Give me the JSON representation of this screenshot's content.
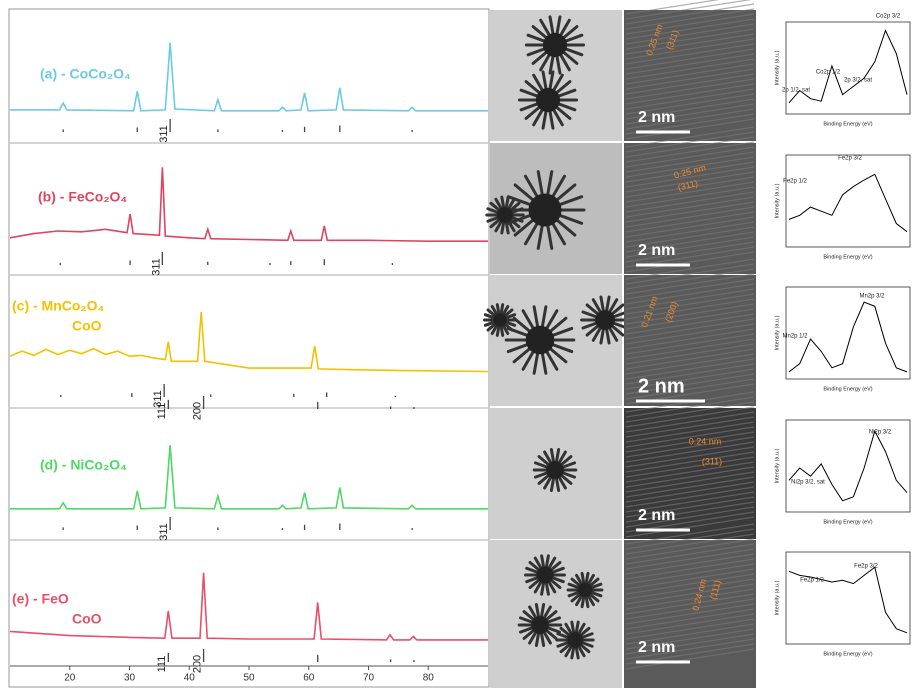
{
  "chart_data": [
    {
      "type": "line",
      "labels": [
        "(a) - CoCo₂O₄"
      ],
      "color": "#6ccbe4",
      "xlim": [
        10,
        90
      ],
      "x": [
        10,
        18.3,
        18.9,
        19.5,
        30.7,
        31.3,
        31.9,
        36.0,
        36.8,
        37.6,
        44.2,
        44.8,
        45.4,
        55.0,
        55.6,
        56.2,
        58.7,
        59.3,
        59.9,
        64.6,
        65.2,
        65.8,
        76.7,
        77.3,
        77.9,
        90
      ],
      "values": [
        6,
        6,
        14,
        6,
        5,
        28,
        5,
        6,
        85,
        7,
        5,
        18,
        5,
        5,
        9,
        5,
        6,
        26,
        5,
        6,
        32,
        6,
        5,
        9,
        5,
        5
      ],
      "refs": [
        {
          "x": [
            18.9,
            31.3,
            36.8,
            44.8,
            55.6,
            59.3,
            65.2,
            77.3
          ],
          "values": [
            20,
            35,
            100,
            20,
            15,
            40,
            50,
            15
          ],
          "hkl": [
            {
              "x": 36.8,
              "label": "311"
            }
          ]
        }
      ]
    },
    {
      "type": "line",
      "labels": [
        "(b) - FeCo₂O₄"
      ],
      "color": "#e0455f",
      "xlim": [
        10,
        90
      ],
      "x": [
        10,
        14,
        18,
        22,
        26,
        29.6,
        30.1,
        30.6,
        33,
        35.0,
        35.5,
        36.0,
        40,
        42.6,
        43.1,
        43.6,
        50,
        56.5,
        57.0,
        57.5,
        62.1,
        62.6,
        63.1,
        70,
        80,
        90
      ],
      "values": [
        12,
        17,
        20,
        19,
        22,
        18,
        40,
        17,
        16,
        15,
        95,
        14,
        12,
        11,
        22,
        11,
        10,
        9,
        20,
        9,
        9,
        26,
        9,
        9,
        8,
        8
      ],
      "refs": [
        {
          "x": [
            18.4,
            30.1,
            35.5,
            43.1,
            53.5,
            57.0,
            62.6,
            74.0
          ],
          "values": [
            15,
            35,
            100,
            25,
            15,
            30,
            45,
            15
          ],
          "hkl": [
            {
              "x": 35.5,
              "label": "311"
            }
          ]
        }
      ]
    },
    {
      "type": "line",
      "labels": [
        "(c) - MnCo₂O₄",
        "CoO"
      ],
      "color": "#f2c200",
      "xlim": [
        10,
        90
      ],
      "x": [
        10,
        12,
        14,
        16,
        18,
        20,
        22,
        24,
        26,
        28,
        30,
        32,
        34,
        36.0,
        36.5,
        37.0,
        41.4,
        42.0,
        42.6,
        50,
        60.4,
        61.0,
        61.6,
        68,
        76,
        90
      ],
      "values": [
        28,
        34,
        29,
        36,
        30,
        35,
        31,
        37,
        30,
        34,
        28,
        29,
        26,
        24,
        45,
        22,
        22,
        80,
        22,
        14,
        14,
        40,
        13,
        12,
        11,
        10
      ],
      "refs": [
        {
          "x": [
            18.5,
            30.4,
            35.8,
            43.6,
            57.5,
            63.0,
            74.5
          ],
          "values": [
            15,
            30,
            100,
            20,
            25,
            35,
            10
          ],
          "hkl": [
            {
              "x": 35.8,
              "label": "311"
            }
          ]
        },
        {
          "x": [
            36.5,
            42.4,
            61.5,
            73.7,
            77.6
          ],
          "values": [
            70,
            100,
            55,
            20,
            15
          ],
          "hkl": [
            {
              "x": 36.5,
              "label": "111"
            },
            {
              "x": 42.4,
              "label": "200"
            }
          ]
        }
      ]
    },
    {
      "type": "line",
      "labels": [
        "(d) - NiCo₂O₄"
      ],
      "color": "#4ed864",
      "xlim": [
        10,
        90
      ],
      "x": [
        10,
        18.3,
        18.9,
        19.5,
        30.7,
        31.3,
        31.9,
        36.0,
        36.8,
        37.6,
        44.2,
        44.8,
        45.4,
        55.0,
        55.6,
        56.2,
        58.7,
        59.3,
        59.9,
        64.6,
        65.2,
        65.8,
        76.7,
        77.3,
        77.9,
        90
      ],
      "values": [
        5,
        5,
        12,
        5,
        5,
        26,
        5,
        6,
        80,
        6,
        5,
        20,
        5,
        5,
        9,
        5,
        6,
        24,
        5,
        6,
        30,
        6,
        5,
        9,
        5,
        5
      ],
      "refs": [
        {
          "x": [
            18.9,
            31.3,
            36.8,
            44.8,
            55.6,
            59.3,
            65.2,
            77.3
          ],
          "values": [
            20,
            35,
            100,
            20,
            15,
            40,
            50,
            15
          ],
          "hkl": [
            {
              "x": 36.8,
              "label": "311"
            }
          ]
        }
      ]
    },
    {
      "type": "line",
      "labels": [
        "(e) - FeO",
        "CoO"
      ],
      "color": "#e85068",
      "xlim": [
        10,
        90
      ],
      "xticks": [
        20,
        30,
        40,
        50,
        60,
        70,
        80
      ],
      "x": [
        10,
        20,
        30,
        35.9,
        36.5,
        37.1,
        41.8,
        42.4,
        43.0,
        50,
        60.9,
        61.5,
        62.1,
        73.0,
        73.6,
        74.2,
        76.9,
        77.5,
        78.1,
        90
      ],
      "values": [
        16,
        11,
        9,
        8,
        40,
        8,
        8,
        85,
        8,
        7,
        7,
        50,
        7,
        6,
        12,
        6,
        6,
        10,
        6,
        6
      ],
      "refs": [
        {
          "x": [
            36.5,
            42.4,
            61.5,
            73.7,
            77.6
          ],
          "values": [
            70,
            100,
            55,
            20,
            15
          ],
          "hkl": [
            {
              "x": 36.5,
              "label": "111"
            },
            {
              "x": 42.4,
              "label": "200"
            }
          ]
        }
      ]
    }
  ],
  "tem": [
    {
      "d_spacing": "0.25 nm",
      "plane": "(311)",
      "scale": "2 nm"
    },
    {
      "d_spacing": "0.25 nm",
      "plane": "(311)",
      "scale": "2 nm"
    },
    {
      "d_spacing": "0.21 nm",
      "plane": "(200)",
      "scale": "2 nm"
    },
    {
      "d_spacing": "0.24 nm",
      "plane": "(311)",
      "scale": "2 nm"
    },
    {
      "d_spacing": "0.24 nm",
      "plane": "(111)",
      "scale": "2 nm"
    }
  ],
  "xps_charts": [
    {
      "type": "line",
      "color": "#000000",
      "xlabel": "Binding Energy (eV)",
      "ylabel": "Intensity (a.u.)",
      "values": [
        10,
        25,
        15,
        12,
        55,
        20,
        30,
        40,
        60,
        98,
        70,
        20
      ],
      "annotations": [
        "Co2p 3/2",
        "Co2p 1/2",
        "2p 3/2, sat",
        "2p 1/2, sat"
      ]
    },
    {
      "type": "line",
      "color": "#000000",
      "xlabel": "Binding Energy (eV)",
      "ylabel": "Intensity (a.u.)",
      "values": [
        30,
        35,
        45,
        40,
        35,
        60,
        70,
        78,
        85,
        55,
        25,
        15
      ],
      "annotations": [
        "Fe2p 3/2",
        "Fe2p 1/2"
      ]
    },
    {
      "type": "line",
      "color": "#000000",
      "xlabel": "Binding Energy (eV)",
      "ylabel": "Intensity (a.u.)",
      "values": [
        5,
        15,
        45,
        30,
        10,
        15,
        60,
        90,
        85,
        40,
        10,
        5
      ],
      "annotations": [
        "Mn2p 3/2",
        "Mn2p 1/2"
      ]
    },
    {
      "type": "line",
      "color": "#000000",
      "xlabel": "Binding Energy (eV)",
      "ylabel": "Intensity (a.u.)",
      "values": [
        35,
        50,
        40,
        55,
        30,
        10,
        15,
        50,
        95,
        70,
        35,
        20
      ],
      "annotations": [
        "Ni2p 3/2",
        "Ni2p 3/2, sat"
      ]
    },
    {
      "type": "line",
      "color": "#000000",
      "xlabel": "Binding Energy (eV)",
      "ylabel": "Intensity (a.u.)",
      "values": [
        85,
        80,
        78,
        75,
        72,
        74,
        70,
        80,
        90,
        35,
        15,
        10
      ],
      "annotations": [
        "Fe2p 3/2",
        "Fe2p 1/2"
      ]
    }
  ]
}
